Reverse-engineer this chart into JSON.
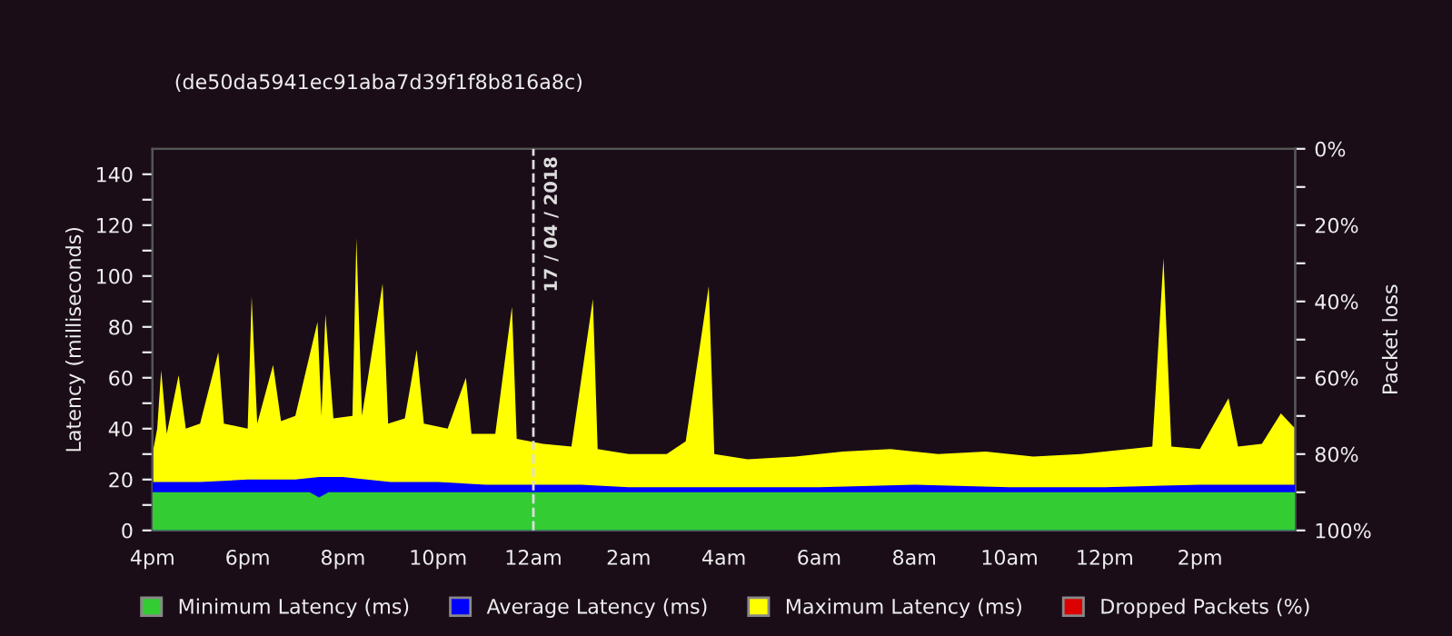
{
  "chart_data": {
    "type": "area",
    "subtitle": "(de50da5941ec91aba7d39f1f8b816a8c)",
    "ylabel": "Latency (milliseconds)",
    "y2label": "Packet loss",
    "xlim": [
      "2018-04-16T16:00",
      "2018-04-17T16:00"
    ],
    "xticks": [
      {
        "value": "2018-04-16T16:00",
        "label": "4pm"
      },
      {
        "value": "2018-04-16T18:00",
        "label": "6pm"
      },
      {
        "value": "2018-04-16T20:00",
        "label": "8pm"
      },
      {
        "value": "2018-04-16T22:00",
        "label": "10pm"
      },
      {
        "value": "2018-04-17T00:00",
        "label": "12am"
      },
      {
        "value": "2018-04-17T02:00",
        "label": "2am"
      },
      {
        "value": "2018-04-17T04:00",
        "label": "4am"
      },
      {
        "value": "2018-04-17T06:00",
        "label": "6am"
      },
      {
        "value": "2018-04-17T08:00",
        "label": "8am"
      },
      {
        "value": "2018-04-17T10:00",
        "label": "10am"
      },
      {
        "value": "2018-04-17T12:00",
        "label": "12pm"
      },
      {
        "value": "2018-04-17T14:00",
        "label": "2pm"
      }
    ],
    "ylim": [
      0,
      150
    ],
    "yticks": [
      0,
      {
        "value": 10,
        "label": null
      },
      20,
      {
        "value": 30,
        "label": null
      },
      40,
      {
        "value": 50,
        "label": null
      },
      60,
      {
        "value": 70,
        "label": null
      },
      80,
      {
        "value": 90,
        "label": null
      },
      100,
      {
        "value": 110,
        "label": null
      },
      120,
      {
        "value": 130,
        "label": null
      },
      140
    ],
    "y2lim": [
      100,
      0
    ],
    "y2ticks": [
      {
        "value": 0,
        "label": "0%"
      },
      {
        "value": 10,
        "label": null
      },
      {
        "value": 20,
        "label": "20%"
      },
      {
        "value": 30,
        "label": null
      },
      {
        "value": 40,
        "label": "40%"
      },
      {
        "value": 50,
        "label": null
      },
      {
        "value": 60,
        "label": "60%"
      },
      {
        "value": 70,
        "label": null
      },
      {
        "value": 80,
        "label": "80%"
      },
      {
        "value": 90,
        "label": null
      },
      {
        "value": 100,
        "label": "100%"
      }
    ],
    "grid": false,
    "legend": "bottom",
    "ref_lines": [
      {
        "axis": "x",
        "value": "2018-04-17T00:00",
        "label": "17 / 04 / 2018",
        "color": "#dddddd",
        "line_style": "dashed"
      }
    ],
    "series": [
      {
        "name": "Minimum Latency (ms)",
        "color": "#33cc33",
        "x": [
          "2018-04-16T16:00",
          "2018-04-16T19:18",
          "2018-04-16T19:30",
          "2018-04-16T19:42",
          "2018-04-16T20:00",
          "2018-04-17T16:00"
        ],
        "values": [
          15,
          15,
          13,
          15,
          15,
          15
        ]
      },
      {
        "name": "Average Latency (ms)",
        "color": "#0000ff",
        "x": [
          "2018-04-16T16:00",
          "2018-04-16T17:00",
          "2018-04-16T18:00",
          "2018-04-16T19:00",
          "2018-04-16T19:30",
          "2018-04-16T20:00",
          "2018-04-16T20:30",
          "2018-04-16T21:00",
          "2018-04-16T22:00",
          "2018-04-16T23:00",
          "2018-04-17T00:00",
          "2018-04-17T01:00",
          "2018-04-17T02:00",
          "2018-04-17T03:00",
          "2018-04-17T04:00",
          "2018-04-17T06:00",
          "2018-04-17T08:00",
          "2018-04-17T10:00",
          "2018-04-17T12:00",
          "2018-04-17T14:00",
          "2018-04-17T16:00"
        ],
        "values": [
          19,
          19,
          20,
          20,
          21,
          21,
          20,
          19,
          19,
          18,
          18,
          18,
          17,
          17,
          17,
          17,
          18,
          17,
          17,
          18,
          18
        ]
      },
      {
        "name": "Maximum Latency (ms)",
        "color": "#ffff00",
        "x": [
          "2018-04-16T16:00",
          "2018-04-16T16:06",
          "2018-04-16T16:11",
          "2018-04-16T16:18",
          "2018-04-16T16:33",
          "2018-04-16T16:42",
          "2018-04-16T17:00",
          "2018-04-16T17:23",
          "2018-04-16T17:30",
          "2018-04-16T18:00",
          "2018-04-16T18:05",
          "2018-04-16T18:12",
          "2018-04-16T18:32",
          "2018-04-16T18:42",
          "2018-04-16T19:00",
          "2018-04-16T19:28",
          "2018-04-16T19:33",
          "2018-04-16T19:38",
          "2018-04-16T19:48",
          "2018-04-16T20:12",
          "2018-04-16T20:17",
          "2018-04-16T20:24",
          "2018-04-16T20:50",
          "2018-04-16T20:57",
          "2018-04-16T21:18",
          "2018-04-16T21:33",
          "2018-04-16T21:42",
          "2018-04-16T22:12",
          "2018-04-16T22:35",
          "2018-04-16T22:42",
          "2018-04-16T23:12",
          "2018-04-16T23:33",
          "2018-04-16T23:39",
          "2018-04-17T00:12",
          "2018-04-17T00:48",
          "2018-04-17T01:15",
          "2018-04-17T01:21",
          "2018-04-17T02:00",
          "2018-04-17T02:48",
          "2018-04-17T03:12",
          "2018-04-17T03:41",
          "2018-04-17T03:48",
          "2018-04-17T04:30",
          "2018-04-17T05:30",
          "2018-04-17T06:30",
          "2018-04-17T07:30",
          "2018-04-17T08:30",
          "2018-04-17T09:30",
          "2018-04-17T10:30",
          "2018-04-17T11:30",
          "2018-04-17T12:30",
          "2018-04-17T13:00",
          "2018-04-17T13:14",
          "2018-04-17T13:24",
          "2018-04-17T14:00",
          "2018-04-17T14:36",
          "2018-04-17T14:48",
          "2018-04-17T15:18",
          "2018-04-17T15:42",
          "2018-04-17T16:00"
        ],
        "values": [
          30,
          40,
          63,
          38,
          61,
          40,
          42,
          70,
          42,
          40,
          92,
          42,
          65,
          43,
          45,
          82,
          45,
          85,
          44,
          45,
          115,
          45,
          97,
          42,
          44,
          71,
          42,
          40,
          60,
          38,
          38,
          88,
          36,
          34,
          33,
          91,
          32,
          30,
          30,
          35,
          96,
          30,
          28,
          29,
          31,
          32,
          30,
          31,
          29,
          30,
          32,
          33,
          107,
          33,
          32,
          52,
          33,
          34,
          46,
          40
        ]
      },
      {
        "name": "Dropped Packets (%)",
        "color": "#dd0000"
      }
    ]
  }
}
